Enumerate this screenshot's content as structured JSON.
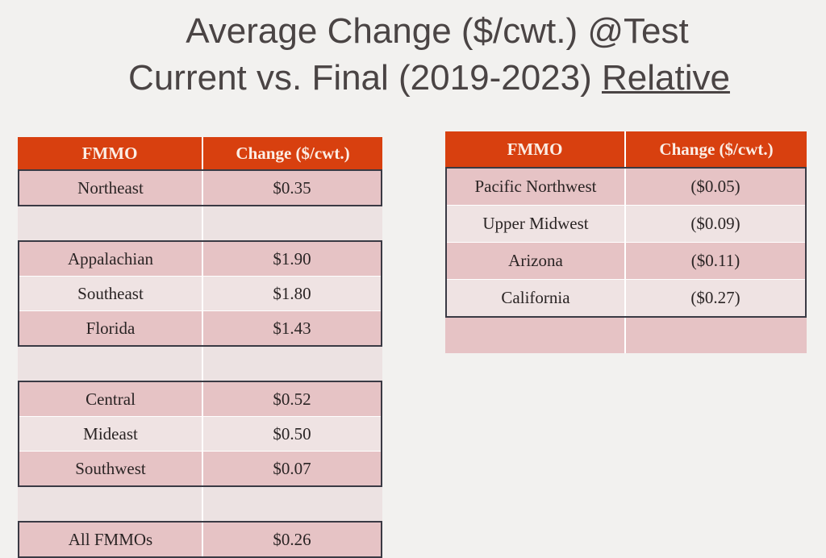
{
  "title": {
    "line1": "Average Change ($/cwt.) @Test",
    "line2_prefix": "Current vs. Final (2019-2023) ",
    "line2_underlined": "Relative"
  },
  "left_table": {
    "headers": [
      "FMMO",
      "Change ($/cwt.)"
    ],
    "groups": [
      [
        {
          "fmmo": "Northeast",
          "change": "$0.35"
        }
      ],
      [
        {
          "fmmo": "Appalachian",
          "change": "$1.90"
        },
        {
          "fmmo": "Southeast",
          "change": "$1.80"
        },
        {
          "fmmo": "Florida",
          "change": "$1.43"
        }
      ],
      [
        {
          "fmmo": "Central",
          "change": "$0.52"
        },
        {
          "fmmo": "Mideast",
          "change": "$0.50"
        },
        {
          "fmmo": "Southwest",
          "change": "$0.07"
        }
      ],
      [
        {
          "fmmo": "All FMMOs",
          "change": "$0.26"
        }
      ]
    ]
  },
  "right_table": {
    "headers": [
      "FMMO",
      "Change ($/cwt.)"
    ],
    "rows": [
      {
        "fmmo": "Pacific Northwest",
        "change": "($0.05)"
      },
      {
        "fmmo": "Upper Midwest",
        "change": "($0.09)"
      },
      {
        "fmmo": "Arizona",
        "change": "($0.11)"
      },
      {
        "fmmo": "California",
        "change": "($0.27)"
      }
    ]
  },
  "colors": {
    "header": "#d8400f",
    "row_pink": "#e6c3c5",
    "row_light": "#efe3e3"
  }
}
